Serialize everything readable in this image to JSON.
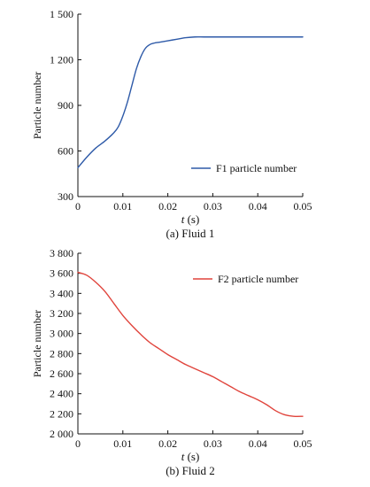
{
  "chart_data": [
    {
      "type": "line",
      "caption": "(a) Fluid 1",
      "xlabel_italic": "t",
      "xlabel_unit": " (s)",
      "ylabel": "Particle number",
      "xlim": [
        0,
        0.05
      ],
      "ylim": [
        300,
        1500
      ],
      "xticks": [
        0,
        0.01,
        0.02,
        0.03,
        0.04,
        0.05
      ],
      "xtick_labels": [
        "0",
        "0.01",
        "0.02",
        "0.03",
        "0.04",
        "0.05"
      ],
      "yticks": [
        300,
        600,
        900,
        1200,
        1500
      ],
      "ytick_labels": [
        "300",
        "600",
        "900",
        "1 200",
        "1 500"
      ],
      "legend_position": "bottom-right",
      "grid": false,
      "series": [
        {
          "name": "F1 particle number",
          "color": "#2e5aa8",
          "x": [
            0,
            0.002,
            0.004,
            0.006,
            0.008,
            0.009,
            0.01,
            0.011,
            0.012,
            0.013,
            0.014,
            0.015,
            0.016,
            0.017,
            0.018,
            0.02,
            0.022,
            0.024,
            0.026,
            0.028,
            0.03,
            0.035,
            0.04,
            0.045,
            0.05
          ],
          "y": [
            490,
            560,
            620,
            665,
            720,
            760,
            830,
            920,
            1030,
            1140,
            1220,
            1275,
            1300,
            1310,
            1315,
            1325,
            1335,
            1345,
            1350,
            1350,
            1350,
            1350,
            1350,
            1350,
            1350
          ]
        }
      ]
    },
    {
      "type": "line",
      "caption": "(b) Fluid 2",
      "xlabel_italic": "t",
      "xlabel_unit": " (s)",
      "ylabel": "Particle number",
      "xlim": [
        0,
        0.05
      ],
      "ylim": [
        2000,
        3800
      ],
      "xticks": [
        0,
        0.01,
        0.02,
        0.03,
        0.04,
        0.05
      ],
      "xtick_labels": [
        "0",
        "0.01",
        "0.02",
        "0.03",
        "0.04",
        "0.05"
      ],
      "yticks": [
        2000,
        2200,
        2400,
        2600,
        2800,
        3000,
        3200,
        3400,
        3600,
        3800
      ],
      "ytick_labels": [
        "2 000",
        "2 200",
        "2 400",
        "2 600",
        "2 800",
        "3 000",
        "3 200",
        "3 400",
        "3 600",
        "3 800"
      ],
      "legend_position": "top-right",
      "grid": false,
      "series": [
        {
          "name": "F2 particle number",
          "color": "#e0443c",
          "x": [
            0,
            0.002,
            0.004,
            0.006,
            0.008,
            0.01,
            0.012,
            0.014,
            0.016,
            0.018,
            0.02,
            0.022,
            0.024,
            0.026,
            0.028,
            0.03,
            0.032,
            0.034,
            0.036,
            0.038,
            0.04,
            0.042,
            0.044,
            0.046,
            0.048,
            0.05
          ],
          "y": [
            3610,
            3580,
            3510,
            3420,
            3300,
            3180,
            3080,
            2990,
            2910,
            2850,
            2790,
            2740,
            2690,
            2650,
            2610,
            2570,
            2520,
            2470,
            2420,
            2380,
            2340,
            2290,
            2230,
            2190,
            2175,
            2175
          ]
        }
      ]
    }
  ]
}
